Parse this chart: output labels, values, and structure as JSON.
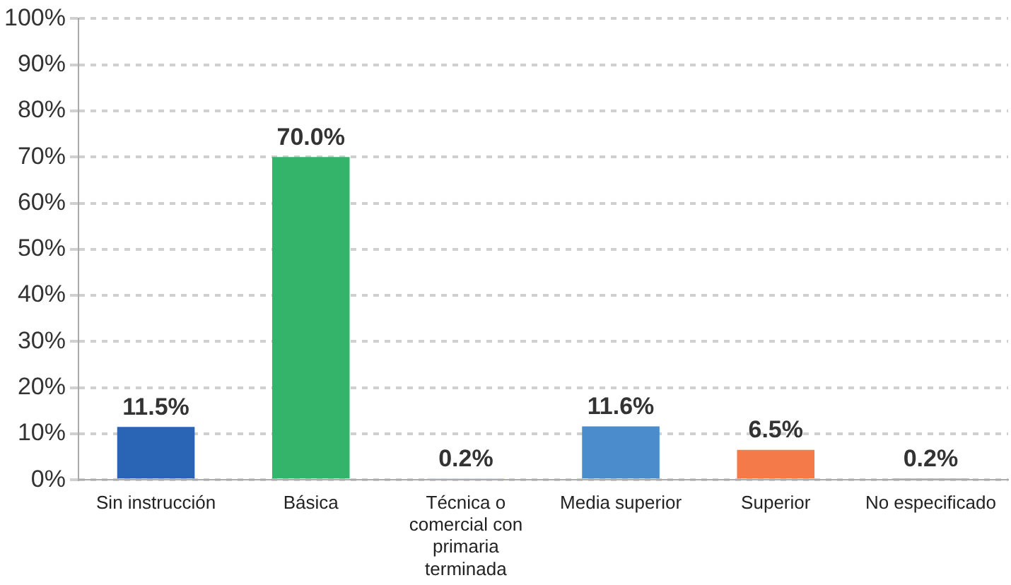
{
  "chart_data": {
    "type": "bar",
    "categories": [
      "Sin instrucción",
      "Básica",
      "Técnica o comercial con primaria terminada",
      "Media superior",
      "Superior",
      "No especificado"
    ],
    "values": [
      11.5,
      70.0,
      0.2,
      11.6,
      6.5,
      0.2
    ],
    "colors": [
      "#2a64b4",
      "#34b46a",
      "#f5d76e",
      "#4a8ccc",
      "#f47a4a",
      "#b0b0b0"
    ],
    "value_labels": [
      "11.5%",
      "70.0%",
      "0.2%",
      "11.6%",
      "6.5%",
      "0.2%"
    ],
    "ylim": [
      0,
      100
    ],
    "yticks": [
      {
        "value": 0,
        "label": "0%"
      },
      {
        "value": 10,
        "label": "10%"
      },
      {
        "value": 20,
        "label": "20%"
      },
      {
        "value": 30,
        "label": "30%"
      },
      {
        "value": 40,
        "label": "40%"
      },
      {
        "value": 50,
        "label": "50%"
      },
      {
        "value": 60,
        "label": "60%"
      },
      {
        "value": 70,
        "label": "70%"
      },
      {
        "value": 80,
        "label": "80%"
      },
      {
        "value": 90,
        "label": "90%"
      },
      {
        "value": 100,
        "label": "100%"
      }
    ],
    "grid": "y",
    "legend": false
  }
}
